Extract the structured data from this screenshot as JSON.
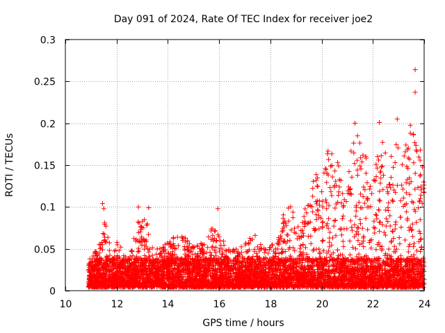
{
  "chart_data": {
    "type": "scatter",
    "title": "Day 091 of 2024, Rate Of TEC Index for receiver joe2",
    "xlabel": "GPS time / hours",
    "ylabel": "ROTI / TECUs",
    "xlim": [
      10,
      24
    ],
    "ylim": [
      0,
      0.3
    ],
    "xticks": [
      "10",
      "12",
      "14",
      "16",
      "18",
      "20",
      "22",
      "24"
    ],
    "xtick_values": [
      10,
      12,
      14,
      16,
      18,
      20,
      22,
      24
    ],
    "yticks": [
      "0",
      "0.05",
      "0.1",
      "0.15",
      "0.2",
      "0.25",
      "0.3"
    ],
    "ytick_values": [
      0,
      0.05,
      0.1,
      0.15,
      0.2,
      0.25,
      0.3
    ],
    "grid": true,
    "marker": "+",
    "color": "#ff0000",
    "x_range_of_data": [
      10.9,
      24.0
    ],
    "envelope": {
      "x": [
        11.0,
        11.3,
        11.5,
        11.8,
        12.0,
        12.5,
        12.9,
        13.2,
        13.5,
        14.0,
        14.5,
        15.0,
        15.5,
        15.9,
        16.3,
        16.9,
        17.3,
        17.7,
        18.2,
        18.5,
        18.9,
        19.2,
        19.5,
        19.7,
        20.0,
        20.3,
        20.6,
        21.0,
        21.3,
        21.7,
        22.0,
        22.3,
        22.6,
        22.9,
        23.2,
        23.5,
        23.8,
        24.0
      ],
      "y": [
        0.035,
        0.05,
        0.09,
        0.04,
        0.055,
        0.035,
        0.09,
        0.085,
        0.045,
        0.055,
        0.065,
        0.05,
        0.055,
        0.085,
        0.045,
        0.05,
        0.065,
        0.055,
        0.05,
        0.09,
        0.1,
        0.07,
        0.12,
        0.15,
        0.13,
        0.17,
        0.15,
        0.14,
        0.19,
        0.16,
        0.12,
        0.19,
        0.15,
        0.18,
        0.16,
        0.2,
        0.16,
        0.15
      ]
    },
    "outliers": [
      {
        "x": 11.45,
        "y": 0.104
      },
      {
        "x": 11.5,
        "y": 0.098
      },
      {
        "x": 12.85,
        "y": 0.1
      },
      {
        "x": 13.25,
        "y": 0.099
      },
      {
        "x": 15.95,
        "y": 0.098
      },
      {
        "x": 21.3,
        "y": 0.2
      },
      {
        "x": 21.4,
        "y": 0.185
      },
      {
        "x": 22.25,
        "y": 0.201
      },
      {
        "x": 22.95,
        "y": 0.205
      },
      {
        "x": 23.65,
        "y": 0.264
      },
      {
        "x": 23.65,
        "y": 0.237
      },
      {
        "x": 23.85,
        "y": 0.168
      }
    ],
    "point_count": 6000
  }
}
